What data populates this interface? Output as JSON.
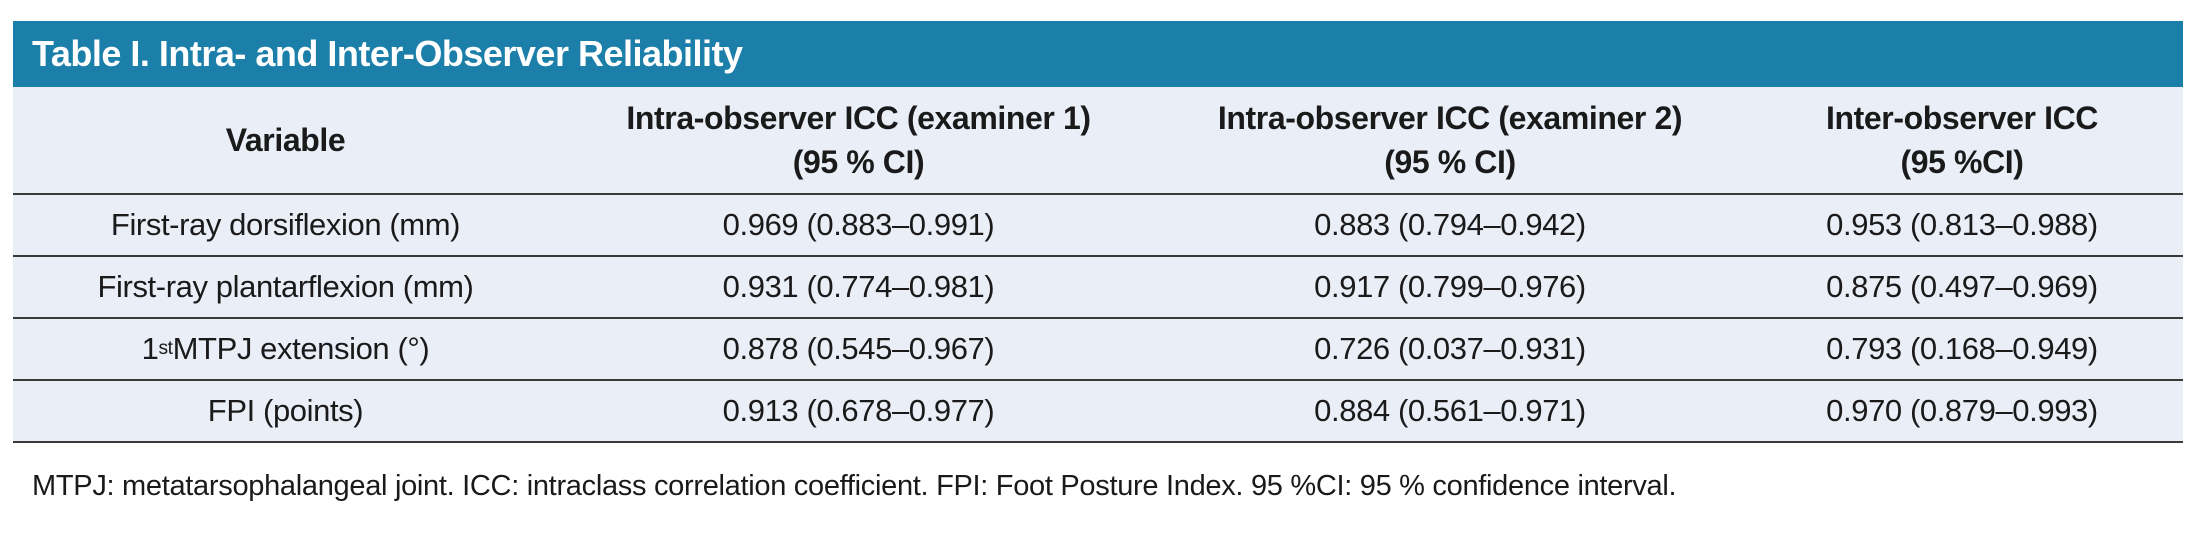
{
  "colors": {
    "title_bar_bg": "#1b7fa9",
    "table_row_bg": "#e9eef7",
    "divider_line": "#3a3a3a",
    "title_text": "#ffffff",
    "body_text": "#1a1a1a"
  },
  "table": {
    "title": "Table I. Intra- and Inter-Observer Reliability",
    "columns": [
      {
        "label": "Variable"
      },
      {
        "line1": "Intra-observer ICC (examiner 1)",
        "line2": "(95 % CI)"
      },
      {
        "line1": "Intra-observer ICC (examiner 2)",
        "line2": "(95 % CI)"
      },
      {
        "line1": "Inter-observer ICC",
        "line2": "(95 %CI)"
      }
    ],
    "rows": [
      {
        "variable": "First-ray dorsiflexion (mm)",
        "intra_icc_examiner1": "0.969 (0.883–0.991)",
        "intra_icc_examiner2": "0.883 (0.794–0.942)",
        "inter_icc": "0.953 (0.813–0.988)"
      },
      {
        "variable": "First-ray plantarflexion (mm)",
        "intra_icc_examiner1": "0.931 (0.774–0.981)",
        "intra_icc_examiner2": "0.917 (0.799–0.976)",
        "inter_icc": "0.875 (0.497–0.969)"
      },
      {
        "variable_base": "1",
        "variable_superscript": "st",
        "variable_rest": " MTPJ extension (°)",
        "intra_icc_examiner1": "0.878 (0.545–0.967)",
        "intra_icc_examiner2": "0.726 (0.037–0.931)",
        "inter_icc": "0.793 (0.168–0.949)"
      },
      {
        "variable": "FPI (points)",
        "intra_icc_examiner1": "0.913 (0.678–0.977)",
        "intra_icc_examiner2": "0.884 (0.561–0.971)",
        "inter_icc": "0.970 (0.879–0.993)"
      }
    ],
    "footnote": "MTPJ: metatarsophalangeal joint. ICC: intraclass correlation coefficient. FPI: Foot Posture Index. 95 %CI: 95 % confidence interval."
  }
}
